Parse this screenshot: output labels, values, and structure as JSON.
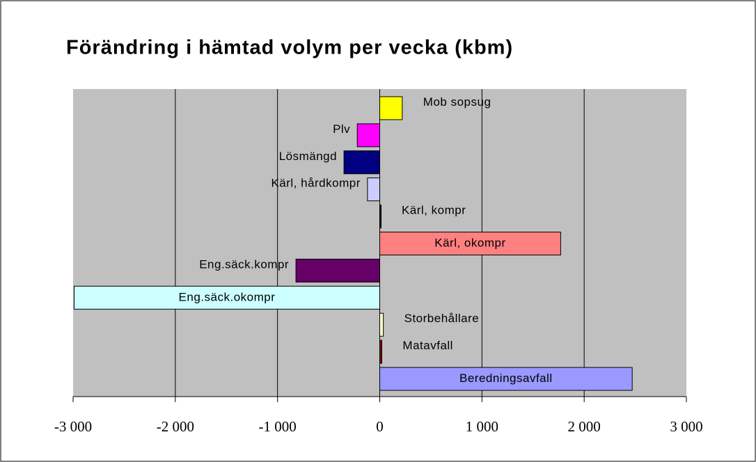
{
  "chart_data": {
    "type": "barh",
    "title": "Förändring i hämtad volym per vecka (kbm)",
    "categories": [
      "Mob sopsug",
      "Plv",
      "Lösmängd",
      "Kärl, hårdkompr",
      "Kärl, kompr",
      "Kärl, okompr",
      "Eng.säck.kompr",
      "Eng.säck.okompr",
      "Storbehållare",
      "Matavfall",
      "Beredningsavfall"
    ],
    "values": [
      220,
      -220,
      -350,
      -120,
      10,
      1770,
      -820,
      -2990,
      35,
      20,
      2470
    ],
    "colors": [
      "#ffff00",
      "#ff00ff",
      "#000080",
      "#ccccff",
      "#000000",
      "#ff8080",
      "#660066",
      "#ccffff",
      "#ffffcc",
      "#800000",
      "#9999ff"
    ],
    "xlim": [
      -3000,
      3000
    ],
    "xticks": [
      {
        "value": -3000,
        "label": "-3 000"
      },
      {
        "value": -2000,
        "label": "-2 000"
      },
      {
        "value": -1000,
        "label": "-1 000"
      },
      0,
      {
        "value": 1000,
        "label": "1 000"
      },
      {
        "value": 2000,
        "label": "2 000"
      },
      {
        "value": 3000,
        "label": "3 000"
      }
    ],
    "grid": true
  }
}
